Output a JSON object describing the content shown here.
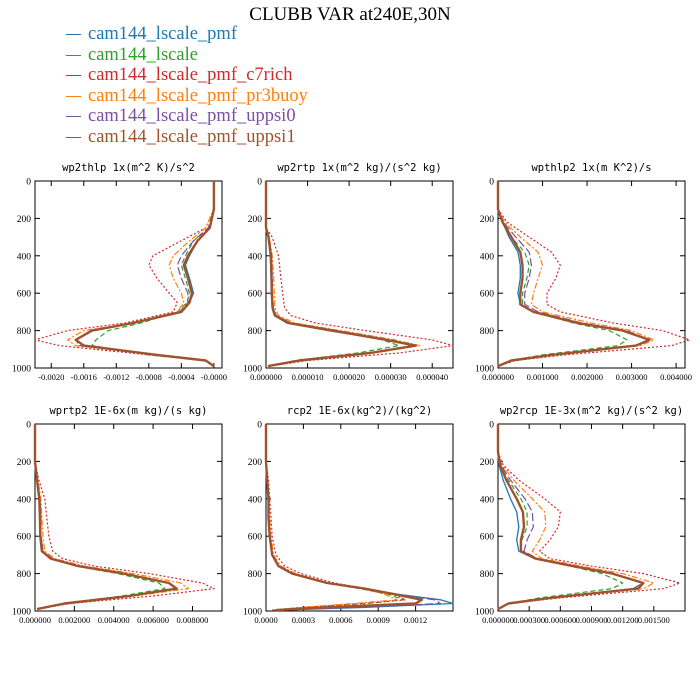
{
  "figure_title": "CLUBB VAR at240E,30N",
  "legend": [
    {
      "label": "cam144_lscale_pmf",
      "color": "#1f77b4"
    },
    {
      "label": "cam144_lscale",
      "color": "#2ca02c"
    },
    {
      "label": "cam144_lscale_pmf_c7rich",
      "color": "#d62728"
    },
    {
      "label": "cam144_lscale_pmf_pr3buoy",
      "color": "#ff7f0e"
    },
    {
      "label": "cam144_lscale_pmf_uppsi0",
      "color": "#7b4fa6"
    },
    {
      "label": "cam144_lscale_pmf_uppsi1",
      "color": "#a0522d"
    }
  ],
  "chart_data": [
    {
      "type": "line",
      "title": "wp2thlp  1x(m^2 K)/s^2",
      "xlim": [
        -0.0022,
        0.0001
      ],
      "ylim": [
        0,
        1000
      ],
      "y_inverted": true,
      "xticks": [
        "-0.0020",
        "-0.0016",
        "-0.0012",
        "-0.0008",
        "-0.0004",
        "-0.0000"
      ],
      "xtick_values": [
        -0.002,
        -0.0016,
        -0.0012,
        -0.0008,
        -0.0004,
        0
      ],
      "yticks": [
        "0",
        "200",
        "400",
        "600",
        "800",
        "1000"
      ],
      "y": [
        0,
        150,
        250,
        320,
        400,
        450,
        520,
        600,
        650,
        700,
        760,
        800,
        850,
        880,
        930,
        960,
        990
      ],
      "series": [
        {
          "values": [
            0,
            0,
            -5e-05,
            -0.0002,
            -0.0003,
            -0.00035,
            -0.0003,
            -0.00025,
            -0.0003,
            -0.0004,
            -0.001,
            -0.0015,
            -0.0017,
            -0.0016,
            -0.0007,
            -0.0001,
            0
          ]
        },
        {
          "values": [
            0,
            0,
            -5e-05,
            -0.00025,
            -0.00035,
            -0.0004,
            -0.00035,
            -0.0003,
            -0.00033,
            -0.00045,
            -0.0009,
            -0.0013,
            -0.00145,
            -0.0015,
            -0.0008,
            -0.0001,
            0
          ]
        },
        {
          "values": [
            0,
            0,
            -0.0001,
            -0.0004,
            -0.00075,
            -0.0008,
            -0.0007,
            -0.00055,
            -0.00045,
            -0.0005,
            -0.0011,
            -0.0018,
            -0.0022,
            -0.0019,
            -0.0008,
            -0.0001,
            0
          ]
        },
        {
          "values": [
            0,
            0,
            -0.0001,
            -0.0003,
            -0.0005,
            -0.00055,
            -0.0005,
            -0.0004,
            -0.00037,
            -0.00045,
            -0.001,
            -0.0016,
            -0.0018,
            -0.0017,
            -0.0007,
            -0.0001,
            0
          ]
        },
        {
          "values": [
            0,
            0,
            -7e-05,
            -0.00025,
            -0.0004,
            -0.00045,
            -0.0004,
            -0.00032,
            -0.00032,
            -0.00042,
            -0.001,
            -0.0015,
            -0.0017,
            -0.00165,
            -0.0007,
            -0.0001,
            0
          ]
        },
        {
          "values": [
            0,
            0,
            -5e-05,
            -0.0002,
            -0.00032,
            -0.00037,
            -0.00032,
            -0.00027,
            -0.0003,
            -0.0004,
            -0.001,
            -0.0015,
            -0.0017,
            -0.0016,
            -0.0007,
            -0.0001,
            0
          ]
        }
      ]
    },
    {
      "type": "line",
      "title": "wp2rtp  1x(m^2 kg)/(s^2 kg)",
      "xlim": [
        0,
        4.5e-05
      ],
      "ylim": [
        0,
        1000
      ],
      "y_inverted": true,
      "xticks": [
        "0.000000",
        "0.000010",
        "0.000020",
        "0.000030",
        "0.000040"
      ],
      "xtick_values": [
        0,
        1e-05,
        2e-05,
        3e-05,
        4e-05
      ],
      "yticks": [
        "0",
        "200",
        "400",
        "600",
        "800",
        "1000"
      ],
      "y": [
        0,
        250,
        300,
        400,
        500,
        600,
        680,
        720,
        760,
        800,
        850,
        880,
        920,
        960,
        990
      ],
      "series": [
        {
          "values": [
            0,
            0,
            5e-07,
            1e-06,
            1.2e-06,
            1.3e-06,
            1.5e-06,
            2e-06,
            5e-06,
            1.5e-05,
            2.9e-05,
            3.6e-05,
            2.5e-05,
            8e-06,
            5e-07
          ]
        },
        {
          "values": [
            0,
            0,
            6e-07,
            1.2e-06,
            1.4e-06,
            1.5e-06,
            1.7e-06,
            2.5e-06,
            6e-06,
            1.6e-05,
            2.8e-05,
            3.2e-05,
            2.2e-05,
            7e-06,
            5e-07
          ]
        },
        {
          "values": [
            0,
            0,
            1.5e-06,
            3e-06,
            3.5e-06,
            4e-06,
            4.5e-06,
            6e-06,
            1.2e-05,
            2.4e-05,
            4e-05,
            4.5e-05,
            3.2e-05,
            1e-05,
            1e-06
          ]
        },
        {
          "values": [
            0,
            0,
            8e-07,
            1.5e-06,
            1.8e-06,
            2e-06,
            2.2e-06,
            3e-06,
            7e-06,
            1.8e-05,
            3.1e-05,
            3.7e-05,
            2.6e-05,
            8e-06,
            5e-07
          ]
        },
        {
          "values": [
            0,
            0,
            7e-07,
            1.3e-06,
            1.5e-06,
            1.6e-06,
            1.8e-06,
            2.5e-06,
            6e-06,
            1.7e-05,
            3e-05,
            3.6e-05,
            2.5e-05,
            8e-06,
            5e-07
          ]
        },
        {
          "values": [
            0,
            0,
            6e-07,
            1.2e-06,
            1.3e-06,
            1.4e-06,
            1.6e-06,
            2.2e-06,
            5.5e-06,
            1.6e-05,
            2.9e-05,
            3.6e-05,
            2.5e-05,
            8e-06,
            5e-07
          ]
        }
      ]
    },
    {
      "type": "line",
      "title": "wpthlp2  1x(m K^2)/s",
      "xlim": [
        0,
        0.0042
      ],
      "ylim": [
        0,
        1000
      ],
      "y_inverted": true,
      "xticks": [
        "0.000000",
        "0.001000",
        "0.002000",
        "0.003000",
        "0.004000"
      ],
      "xtick_values": [
        0,
        0.001,
        0.002,
        0.003,
        0.004
      ],
      "yticks": [
        "0",
        "200",
        "400",
        "600",
        "800",
        "1000"
      ],
      "y": [
        0,
        150,
        220,
        300,
        380,
        450,
        520,
        600,
        660,
        700,
        760,
        800,
        850,
        880,
        930,
        960,
        990
      ],
      "series": [
        {
          "values": [
            0,
            0,
            0.0001,
            0.00025,
            0.00045,
            0.0005,
            0.0005,
            0.00045,
            0.0005,
            0.0008,
            0.0018,
            0.0028,
            0.0034,
            0.0031,
            0.0012,
            0.0003,
            0
          ]
        },
        {
          "values": [
            0,
            0,
            0.0001,
            0.0003,
            0.0006,
            0.0007,
            0.00065,
            0.00055,
            0.00055,
            0.0008,
            0.0017,
            0.0025,
            0.0029,
            0.0027,
            0.001,
            0.0003,
            0
          ]
        },
        {
          "values": [
            0,
            0,
            0.0002,
            0.0007,
            0.0012,
            0.0014,
            0.0013,
            0.0011,
            0.0011,
            0.0014,
            0.0026,
            0.0037,
            0.0043,
            0.0039,
            0.0015,
            0.0004,
            0
          ]
        },
        {
          "values": [
            0,
            0,
            0.00015,
            0.0005,
            0.0009,
            0.001,
            0.0009,
            0.0008,
            0.00075,
            0.001,
            0.0021,
            0.003,
            0.0035,
            0.0032,
            0.0012,
            0.0003,
            0
          ]
        },
        {
          "values": [
            0,
            0,
            0.00012,
            0.0004,
            0.0007,
            0.00075,
            0.0007,
            0.0006,
            0.0006,
            0.0009,
            0.0019,
            0.0029,
            0.0034,
            0.0031,
            0.0012,
            0.0003,
            0
          ]
        },
        {
          "values": [
            0,
            0,
            0.0001,
            0.0003,
            0.0005,
            0.00055,
            0.00055,
            0.0005,
            0.0005,
            0.0008,
            0.0018,
            0.0028,
            0.0034,
            0.0031,
            0.0012,
            0.0003,
            0
          ]
        }
      ]
    },
    {
      "type": "line",
      "title": "wprtp2  1E-6x(m kg)/(s kg)",
      "xlim": [
        0,
        0.0095
      ],
      "ylim": [
        0,
        1000
      ],
      "y_inverted": true,
      "xticks": [
        "0.000000",
        "0.002000",
        "0.004000",
        "0.006000",
        "0.008000"
      ],
      "xtick_values": [
        0,
        0.002,
        0.004,
        0.006,
        0.008
      ],
      "yticks": [
        "0",
        "200",
        "400",
        "600",
        "800",
        "1000"
      ],
      "y": [
        0,
        200,
        300,
        400,
        500,
        600,
        680,
        720,
        760,
        800,
        850,
        880,
        920,
        960,
        990
      ],
      "series": [
        {
          "values": [
            0,
            0,
            0.0001,
            0.00025,
            0.00028,
            0.0003,
            0.0004,
            0.0008,
            0.0022,
            0.0045,
            0.0068,
            0.0072,
            0.0048,
            0.0015,
            0.0001
          ]
        },
        {
          "values": [
            0,
            0,
            0.0001,
            0.00025,
            0.00028,
            0.0003,
            0.0004,
            0.0008,
            0.0021,
            0.0042,
            0.0063,
            0.0066,
            0.0044,
            0.0014,
            0.0001
          ]
        },
        {
          "values": [
            0,
            0,
            0.0002,
            0.0005,
            0.0006,
            0.0007,
            0.0009,
            0.0014,
            0.003,
            0.0058,
            0.0085,
            0.0091,
            0.006,
            0.0018,
            0.0001
          ]
        },
        {
          "values": [
            0,
            0,
            0.00015,
            0.0003,
            0.00035,
            0.0004,
            0.0005,
            0.001,
            0.0025,
            0.005,
            0.0074,
            0.0078,
            0.005,
            0.0016,
            0.0001
          ]
        },
        {
          "values": [
            0,
            0,
            0.0001,
            0.00025,
            0.0003,
            0.0003,
            0.0004,
            0.0009,
            0.0023,
            0.0046,
            0.0068,
            0.0071,
            0.0047,
            0.0015,
            0.0001
          ]
        },
        {
          "values": [
            0,
            0,
            0.0001,
            0.00022,
            0.00025,
            0.00027,
            0.00035,
            0.0008,
            0.0022,
            0.0045,
            0.0068,
            0.0072,
            0.0048,
            0.0015,
            0.0001
          ]
        }
      ]
    },
    {
      "type": "line",
      "title": "rcp2  1E-6x(kg^2)/(kg^2)",
      "xlim": [
        0,
        0.0015
      ],
      "ylim": [
        0,
        1000
      ],
      "y_inverted": true,
      "xticks": [
        "0.0000",
        "0.0003",
        "0.0006",
        "0.0009",
        "0.0012"
      ],
      "xtick_values": [
        0,
        0.0003,
        0.0006,
        0.0009,
        0.0012
      ],
      "yticks": [
        "0",
        "200",
        "400",
        "600",
        "800",
        "1000"
      ],
      "y": [
        0,
        200,
        300,
        400,
        500,
        600,
        700,
        760,
        800,
        850,
        880,
        910,
        940,
        960,
        980,
        995
      ],
      "series": [
        {
          "values": [
            0,
            0,
            1e-05,
            2e-05,
            2e-05,
            3e-05,
            5e-05,
            0.0001,
            0.00022,
            0.0005,
            0.0008,
            0.00105,
            0.0014,
            0.0015,
            0.0008,
            0.0001
          ]
        },
        {
          "values": [
            0,
            0,
            1e-05,
            2e-05,
            2e-05,
            3e-05,
            5e-05,
            0.0001,
            0.0002,
            0.00048,
            0.00075,
            0.00098,
            0.0011,
            0.0008,
            0.0003,
            5e-05
          ]
        },
        {
          "values": [
            0,
            0,
            2e-05,
            3e-05,
            4e-05,
            5e-05,
            8e-05,
            0.00015,
            0.00028,
            0.00055,
            0.0008,
            0.00102,
            0.00112,
            0.0008,
            0.0003,
            5e-05
          ]
        },
        {
          "values": [
            0,
            0,
            1e-05,
            2e-05,
            3e-05,
            4e-05,
            6e-05,
            0.00012,
            0.00024,
            0.0005,
            0.00078,
            0.00095,
            0.00105,
            0.0007,
            0.0003,
            5e-05
          ]
        },
        {
          "values": [
            0,
            0,
            1e-05,
            2e-05,
            2e-05,
            3e-05,
            5e-05,
            0.0001,
            0.00022,
            0.0005,
            0.0008,
            0.00104,
            0.00135,
            0.0014,
            0.0007,
            0.0001
          ]
        },
        {
          "values": [
            0,
            0,
            1e-05,
            2e-05,
            2e-05,
            3e-05,
            5e-05,
            0.0001,
            0.00021,
            0.00049,
            0.00079,
            0.00103,
            0.00125,
            0.0012,
            0.0005,
            8e-05
          ]
        }
      ]
    },
    {
      "type": "line",
      "title": "wp2rcp  1E-3x(m^2 kg)/(s^2 kg)",
      "xlim": [
        0,
        0.0018
      ],
      "ylim": [
        0,
        1000
      ],
      "y_inverted": true,
      "xticks": [
        "0.000000",
        "0.000300",
        "0.000600",
        "0.000900",
        "0.001200",
        "0.001500"
      ],
      "xtick_values": [
        0,
        0.0003,
        0.0006,
        0.0009,
        0.0012,
        0.0015
      ],
      "yticks": [
        "0",
        "200",
        "400",
        "600",
        "800",
        "1000"
      ],
      "y": [
        0,
        150,
        220,
        300,
        400,
        470,
        550,
        620,
        680,
        720,
        760,
        800,
        850,
        880,
        930,
        960,
        990
      ],
      "series": [
        {
          "values": [
            0,
            0,
            1e-05,
            5e-05,
            0.00012,
            0.00018,
            0.0002,
            0.00018,
            0.0002,
            0.00035,
            0.0007,
            0.0011,
            0.0014,
            0.0013,
            0.0005,
            0.0001,
            0
          ]
        },
        {
          "values": [
            0,
            0,
            2e-05,
            0.0001,
            0.00022,
            0.00028,
            0.00028,
            0.00023,
            0.00022,
            0.00035,
            0.0007,
            0.001,
            0.0012,
            0.0011,
            0.0004,
            0.0001,
            0
          ]
        },
        {
          "values": [
            0,
            0,
            5e-05,
            0.0002,
            0.00045,
            0.0006,
            0.00058,
            0.0005,
            0.0004,
            0.0005,
            0.0009,
            0.0014,
            0.00175,
            0.0016,
            0.0006,
            0.0001,
            0
          ]
        },
        {
          "values": [
            0,
            0,
            4e-05,
            0.00015,
            0.00033,
            0.00045,
            0.00046,
            0.0004,
            0.00033,
            0.00042,
            0.0008,
            0.0012,
            0.0015,
            0.0014,
            0.0005,
            0.0001,
            0
          ]
        },
        {
          "values": [
            0,
            0,
            3e-05,
            0.00012,
            0.00026,
            0.00033,
            0.00034,
            0.00028,
            0.00025,
            0.00038,
            0.00075,
            0.0011,
            0.0014,
            0.0013,
            0.0005,
            0.0001,
            0
          ]
        },
        {
          "values": [
            0,
            0,
            2e-05,
            8e-05,
            0.00018,
            0.00024,
            0.00025,
            0.00022,
            0.00022,
            0.00036,
            0.00072,
            0.0011,
            0.0014,
            0.00135,
            0.0005,
            0.0001,
            0
          ]
        }
      ]
    }
  ]
}
